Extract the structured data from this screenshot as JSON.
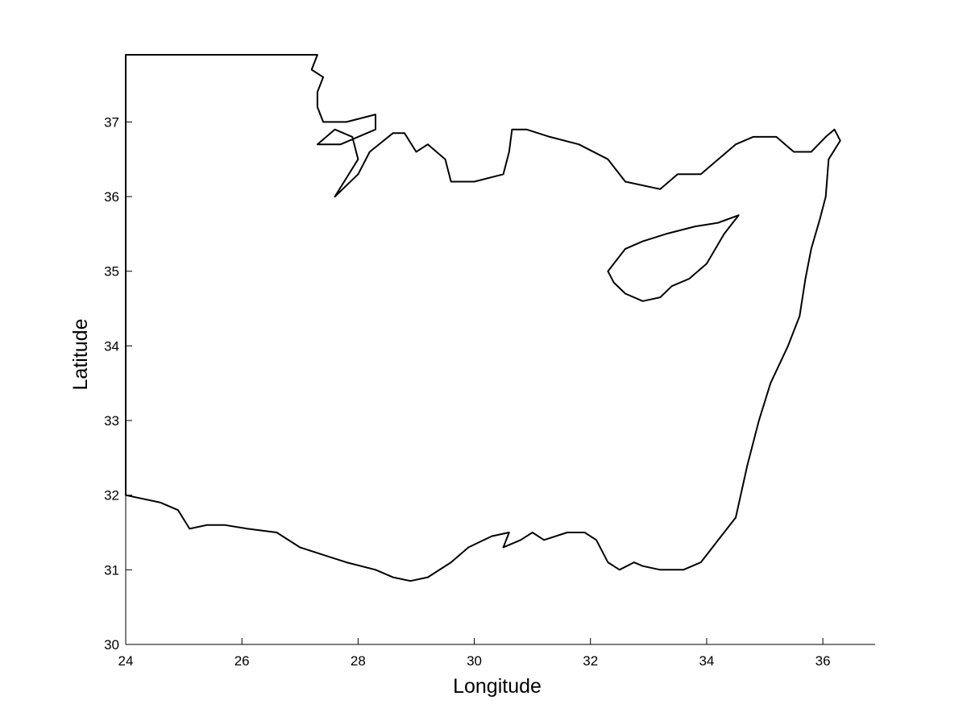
{
  "chart_data": {
    "type": "map",
    "xlabel": "Longitude",
    "ylabel": "Latitude",
    "xlim": [
      24,
      36.9
    ],
    "ylim": [
      30,
      37.9
    ],
    "xticks": [
      24,
      26,
      28,
      30,
      32,
      34,
      36
    ],
    "yticks": [
      30,
      31,
      32,
      33,
      34,
      35,
      36,
      37
    ],
    "grid": false,
    "colors": {
      "mesh": "#000000",
      "background": "#ffffff"
    },
    "domain_outline": [
      [
        24.0,
        37.9
      ],
      [
        27.3,
        37.9
      ],
      [
        27.2,
        37.7
      ],
      [
        27.4,
        37.6
      ],
      [
        27.3,
        37.4
      ],
      [
        27.3,
        37.2
      ],
      [
        27.4,
        37.0
      ],
      [
        27.8,
        37.0
      ],
      [
        28.3,
        37.1
      ],
      [
        28.3,
        36.9
      ],
      [
        27.7,
        36.7
      ],
      [
        27.3,
        36.7
      ],
      [
        27.6,
        36.9
      ],
      [
        27.9,
        36.8
      ],
      [
        28.0,
        36.5
      ],
      [
        27.6,
        36.0
      ],
      [
        28.0,
        36.3
      ],
      [
        28.2,
        36.6
      ],
      [
        28.6,
        36.85
      ],
      [
        28.8,
        36.85
      ],
      [
        29.0,
        36.6
      ],
      [
        29.2,
        36.7
      ],
      [
        29.5,
        36.5
      ],
      [
        29.6,
        36.2
      ],
      [
        30.0,
        36.2
      ],
      [
        30.5,
        36.3
      ],
      [
        30.6,
        36.6
      ],
      [
        30.65,
        36.9
      ],
      [
        30.9,
        36.9
      ],
      [
        31.3,
        36.8
      ],
      [
        31.8,
        36.7
      ],
      [
        32.3,
        36.5
      ],
      [
        32.6,
        36.2
      ],
      [
        33.2,
        36.1
      ],
      [
        33.5,
        36.3
      ],
      [
        33.9,
        36.3
      ],
      [
        34.2,
        36.5
      ],
      [
        34.5,
        36.7
      ],
      [
        34.8,
        36.8
      ],
      [
        35.2,
        36.8
      ],
      [
        35.5,
        36.6
      ],
      [
        35.8,
        36.6
      ],
      [
        36.05,
        36.8
      ],
      [
        36.2,
        36.9
      ],
      [
        36.3,
        36.75
      ],
      [
        36.1,
        36.5
      ],
      [
        36.05,
        36.0
      ],
      [
        35.95,
        35.7
      ],
      [
        35.8,
        35.3
      ],
      [
        35.7,
        34.9
      ],
      [
        35.6,
        34.4
      ],
      [
        35.4,
        34.0
      ],
      [
        35.1,
        33.5
      ],
      [
        34.9,
        33.0
      ],
      [
        34.7,
        32.4
      ],
      [
        34.5,
        31.7
      ],
      [
        34.2,
        31.4
      ],
      [
        33.9,
        31.1
      ],
      [
        33.6,
        31.0
      ],
      [
        33.2,
        31.0
      ],
      [
        32.9,
        31.05
      ],
      [
        32.75,
        31.1
      ],
      [
        32.5,
        31.0
      ],
      [
        32.3,
        31.1
      ],
      [
        32.1,
        31.4
      ],
      [
        31.9,
        31.5
      ],
      [
        31.6,
        31.5
      ],
      [
        31.2,
        31.4
      ],
      [
        31.0,
        31.5
      ],
      [
        30.8,
        31.4
      ],
      [
        30.5,
        31.3
      ],
      [
        30.6,
        31.5
      ],
      [
        30.3,
        31.45
      ],
      [
        29.9,
        31.3
      ],
      [
        29.6,
        31.1
      ],
      [
        29.2,
        30.9
      ],
      [
        28.9,
        30.85
      ],
      [
        28.6,
        30.9
      ],
      [
        28.3,
        31.0
      ],
      [
        27.8,
        31.1
      ],
      [
        27.4,
        31.2
      ],
      [
        27.0,
        31.3
      ],
      [
        26.6,
        31.5
      ],
      [
        26.1,
        31.55
      ],
      [
        25.7,
        31.6
      ],
      [
        25.4,
        31.6
      ],
      [
        25.1,
        31.55
      ],
      [
        24.9,
        31.8
      ],
      [
        24.6,
        31.9
      ],
      [
        24.0,
        32.0
      ]
    ],
    "islands": [
      [
        [
          32.3,
          35.0
        ],
        [
          32.6,
          35.3
        ],
        [
          32.9,
          35.4
        ],
        [
          33.3,
          35.5
        ],
        [
          33.8,
          35.6
        ],
        [
          34.2,
          35.65
        ],
        [
          34.55,
          35.75
        ],
        [
          34.3,
          35.5
        ],
        [
          34.0,
          35.1
        ],
        [
          33.7,
          34.9
        ],
        [
          33.4,
          34.8
        ],
        [
          33.2,
          34.65
        ],
        [
          32.9,
          34.6
        ],
        [
          32.6,
          34.7
        ],
        [
          32.4,
          34.85
        ]
      ]
    ]
  }
}
